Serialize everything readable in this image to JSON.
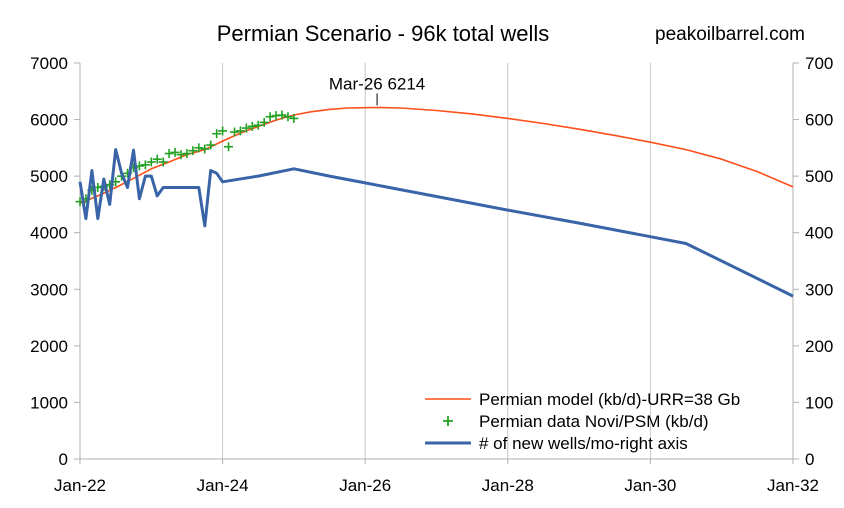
{
  "chart_data": {
    "type": "line",
    "title": "Permian Scenario  - 96k total wells",
    "source_label": "peakoilbarrel.com",
    "xlabel": "",
    "ylabel": "",
    "x_range": [
      "2022-01",
      "2032-01"
    ],
    "x_ticks": [
      "Jan-22",
      "Jan-24",
      "Jan-26",
      "Jan-28",
      "Jan-30",
      "Jan-32"
    ],
    "ylim_left": [
      0,
      7000
    ],
    "y_ticks_left": [
      "0",
      "1000",
      "2000",
      "3000",
      "4000",
      "5000",
      "6000",
      "7000"
    ],
    "ylim_right": [
      0,
      700
    ],
    "y_ticks_right": [
      "0",
      "100",
      "200",
      "300",
      "400",
      "500",
      "600",
      "700"
    ],
    "grid": "vertical",
    "legend_position": "bottom-right",
    "annotation": {
      "text": "Mar-26 6214",
      "x": "2026-03",
      "y": 6214
    },
    "series": [
      {
        "name": "Permian model (kb/d)-URR=38 Gb",
        "axis": "left",
        "style": "line",
        "color": "#ff4f1a",
        "points": [
          [
            "2022-01",
            4520
          ],
          [
            "2022-04",
            4650
          ],
          [
            "2022-07",
            4800
          ],
          [
            "2022-10",
            4960
          ],
          [
            "2023-01",
            5130
          ],
          [
            "2023-04",
            5250
          ],
          [
            "2023-07",
            5380
          ],
          [
            "2023-10",
            5470
          ],
          [
            "2024-01",
            5620
          ],
          [
            "2024-04",
            5760
          ],
          [
            "2024-07",
            5880
          ],
          [
            "2024-10",
            5990
          ],
          [
            "2025-01",
            6080
          ],
          [
            "2025-04",
            6140
          ],
          [
            "2025-07",
            6180
          ],
          [
            "2025-10",
            6205
          ],
          [
            "2026-01",
            6210
          ],
          [
            "2026-03",
            6214
          ],
          [
            "2026-07",
            6205
          ],
          [
            "2027-01",
            6160
          ],
          [
            "2027-07",
            6100
          ],
          [
            "2028-01",
            6020
          ],
          [
            "2028-07",
            5930
          ],
          [
            "2029-01",
            5830
          ],
          [
            "2029-07",
            5720
          ],
          [
            "2030-01",
            5600
          ],
          [
            "2030-07",
            5470
          ],
          [
            "2031-01",
            5300
          ],
          [
            "2031-07",
            5080
          ],
          [
            "2032-01",
            4810
          ]
        ]
      },
      {
        "name": "Permian data Novi/PSM (kb/d)",
        "axis": "left",
        "style": "marker",
        "color": "#22a022",
        "points": [
          [
            "2022-01",
            4550
          ],
          [
            "2022-02",
            4600
          ],
          [
            "2022-03",
            4750
          ],
          [
            "2022-04",
            4800
          ],
          [
            "2022-05",
            4820
          ],
          [
            "2022-06",
            4850
          ],
          [
            "2022-07",
            4900
          ],
          [
            "2022-08",
            5000
          ],
          [
            "2022-09",
            5050
          ],
          [
            "2022-10",
            5150
          ],
          [
            "2022-11",
            5180
          ],
          [
            "2022-12",
            5200
          ],
          [
            "2023-01",
            5250
          ],
          [
            "2023-02",
            5300
          ],
          [
            "2023-03",
            5250
          ],
          [
            "2023-04",
            5400
          ],
          [
            "2023-05",
            5420
          ],
          [
            "2023-06",
            5380
          ],
          [
            "2023-07",
            5400
          ],
          [
            "2023-08",
            5450
          ],
          [
            "2023-09",
            5500
          ],
          [
            "2023-10",
            5480
          ],
          [
            "2023-11",
            5550
          ],
          [
            "2023-12",
            5750
          ],
          [
            "2024-01",
            5800
          ],
          [
            "2024-02",
            5520
          ],
          [
            "2024-03",
            5780
          ],
          [
            "2024-04",
            5800
          ],
          [
            "2024-05",
            5850
          ],
          [
            "2024-06",
            5880
          ],
          [
            "2024-07",
            5900
          ],
          [
            "2024-08",
            5950
          ],
          [
            "2024-09",
            6050
          ],
          [
            "2024-10",
            6070
          ],
          [
            "2024-11",
            6080
          ],
          [
            "2024-12",
            6050
          ],
          [
            "2025-01",
            6020
          ]
        ]
      },
      {
        "name": "# of new wells/mo-right axis",
        "axis": "right",
        "style": "line",
        "color": "#3a64a8",
        "points": [
          [
            "2022-01",
            490
          ],
          [
            "2022-02",
            425
          ],
          [
            "2022-03",
            510
          ],
          [
            "2022-04",
            425
          ],
          [
            "2022-05",
            495
          ],
          [
            "2022-06",
            450
          ],
          [
            "2022-07",
            547
          ],
          [
            "2022-08",
            505
          ],
          [
            "2022-09",
            480
          ],
          [
            "2022-10",
            546
          ],
          [
            "2022-11",
            460
          ],
          [
            "2022-12",
            500
          ],
          [
            "2023-01",
            500
          ],
          [
            "2023-02",
            465
          ],
          [
            "2023-03",
            480
          ],
          [
            "2023-04",
            480
          ],
          [
            "2023-05",
            480
          ],
          [
            "2023-06",
            480
          ],
          [
            "2023-07",
            480
          ],
          [
            "2023-08",
            480
          ],
          [
            "2023-09",
            480
          ],
          [
            "2023-10",
            412
          ],
          [
            "2023-11",
            510
          ],
          [
            "2023-12",
            505
          ],
          [
            "2024-01",
            490
          ],
          [
            "2024-07",
            500
          ],
          [
            "2025-01",
            513
          ],
          [
            "2025-07",
            500
          ],
          [
            "2026-01",
            488
          ],
          [
            "2027-01",
            464
          ],
          [
            "2028-01",
            440
          ],
          [
            "2029-01",
            417
          ],
          [
            "2030-01",
            393
          ],
          [
            "2030-07",
            381
          ],
          [
            "2031-01",
            350
          ],
          [
            "2032-01",
            288
          ]
        ]
      }
    ]
  }
}
